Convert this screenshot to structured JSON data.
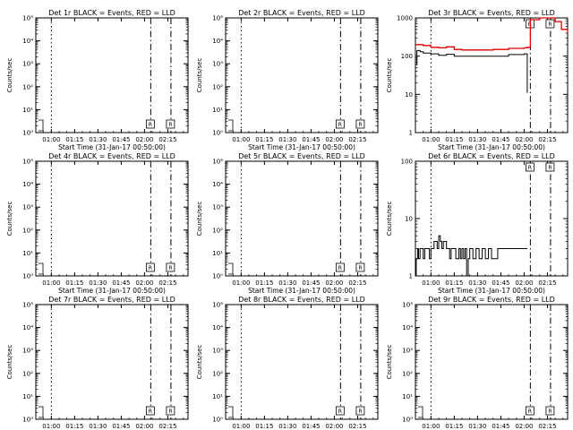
{
  "figure": {
    "colors": {
      "events": "#000000",
      "lld": "#e00000",
      "background": "#ffffff",
      "axes": "#000000"
    }
  },
  "chart_data": [
    {
      "type": "line",
      "title": "Det 1r BLACK = Events, RED = LLD",
      "xlabel": "Start Time (31-Jan-17 00:50:00)",
      "ylabel": "Counts/sec",
      "x_ticks": [
        "01:00",
        "01:15",
        "01:30",
        "01:45",
        "02:00",
        "02:15"
      ],
      "x_range": [
        "00:50",
        "02:28"
      ],
      "y_scale": "log",
      "ylim": [
        1,
        100000
      ],
      "y_ticks": [
        "10⁰",
        "10¹",
        "10²",
        "10³",
        "10⁴",
        "10⁵"
      ],
      "series": [],
      "markers": [
        "01:00",
        "02:04",
        "02:17"
      ],
      "marker_label": "R"
    },
    {
      "type": "line",
      "title": "Det 2r BLACK = Events, RED = LLD",
      "xlabel": "Start Time (31-Jan-17 00:50:00)",
      "ylabel": "Counts/sec",
      "x_ticks": [
        "01:00",
        "01:15",
        "01:30",
        "01:45",
        "02:00",
        "02:15"
      ],
      "x_range": [
        "00:50",
        "02:28"
      ],
      "y_scale": "log",
      "ylim": [
        1,
        100000
      ],
      "y_ticks": [
        "10⁰",
        "10¹",
        "10²",
        "10³",
        "10⁴",
        "10⁵"
      ],
      "series": [],
      "markers": [
        "01:00",
        "02:04",
        "02:17"
      ],
      "marker_label": "R"
    },
    {
      "type": "line",
      "title": "Det 3r BLACK = Events, RED = LLD",
      "xlabel": "Start Time (31-Jan-17 00:50:00)",
      "ylabel": "Counts/sec",
      "x_ticks": [
        "01:00",
        "01:15",
        "01:30",
        "01:45",
        "02:00",
        "02:15"
      ],
      "x_range": [
        "00:50",
        "02:28"
      ],
      "y_scale": "log",
      "ylim": [
        1,
        1000
      ],
      "y_ticks": [
        "1",
        "10",
        "100",
        "1000"
      ],
      "series": [
        {
          "color": "red",
          "x": [
            "00:50",
            "00:55",
            "01:00",
            "01:05",
            "01:10",
            "01:15",
            "01:20",
            "01:30",
            "01:40",
            "01:50",
            "02:00",
            "02:02",
            "02:04",
            "02:04",
            "02:10",
            "02:18",
            "02:20",
            "02:24",
            "02:28"
          ],
          "y": [
            200,
            190,
            170,
            165,
            175,
            150,
            145,
            145,
            150,
            160,
            165,
            170,
            170,
            900,
            1000,
            1000,
            800,
            500,
            400
          ]
        },
        {
          "color": "black",
          "x": [
            "00:50",
            "00:51",
            "00:53",
            "00:55",
            "01:00",
            "01:05",
            "01:10",
            "01:15",
            "01:20",
            "01:30",
            "01:40",
            "01:50",
            "02:00",
            "02:02",
            "02:02"
          ],
          "y": [
            60,
            140,
            130,
            120,
            115,
            105,
            112,
            100,
            100,
            100,
            100,
            110,
            115,
            115,
            11
          ]
        }
      ],
      "markers": [
        "01:00",
        "02:04",
        "02:17"
      ],
      "marker_label": "R"
    },
    {
      "type": "line",
      "title": "Det 4r BLACK = Events, RED = LLD",
      "xlabel": "Start Time (31-Jan-17 00:50:00)",
      "ylabel": "Counts/sec",
      "x_ticks": [
        "01:00",
        "01:15",
        "01:30",
        "01:45",
        "02:00",
        "02:15"
      ],
      "x_range": [
        "00:50",
        "02:28"
      ],
      "y_scale": "log",
      "ylim": [
        1,
        100000
      ],
      "y_ticks": [
        "10⁰",
        "10¹",
        "10²",
        "10³",
        "10⁴",
        "10⁵"
      ],
      "series": [],
      "markers": [
        "01:00",
        "02:04",
        "02:17"
      ],
      "marker_label": "R"
    },
    {
      "type": "line",
      "title": "Det 5r BLACK = Events, RED = LLD",
      "xlabel": "Start Time (31-Jan-17 00:50:00)",
      "ylabel": "Counts/sec",
      "x_ticks": [
        "01:00",
        "01:15",
        "01:30",
        "01:45",
        "02:00",
        "02:15"
      ],
      "x_range": [
        "00:50",
        "02:28"
      ],
      "y_scale": "log",
      "ylim": [
        1,
        100000
      ],
      "y_ticks": [
        "10⁰",
        "10¹",
        "10²",
        "10³",
        "10⁴",
        "10⁵"
      ],
      "series": [],
      "markers": [
        "01:00",
        "02:04",
        "02:17"
      ],
      "marker_label": "R"
    },
    {
      "type": "line",
      "title": "Det 6r BLACK = Events, RED = LLD",
      "xlabel": "Start Time (31-Jan-17 00:50:00)",
      "ylabel": "Counts/sec",
      "x_ticks": [
        "01:00",
        "01:15",
        "01:30",
        "01:45",
        "02:00",
        "02:15"
      ],
      "x_range": [
        "00:50",
        "02:28"
      ],
      "y_scale": "log",
      "ylim": [
        1,
        100
      ],
      "y_ticks": [
        "1",
        "10",
        "100"
      ],
      "series": [
        {
          "color": "black",
          "x": [
            "00:50",
            "00:50.5",
            "00:51",
            "00:51.5",
            "00:52",
            "00:53",
            "00:54",
            "00:55",
            "00:56",
            "00:57",
            "00:58",
            "00:59",
            "01:00",
            "01:01",
            "01:02",
            "01:03",
            "01:04",
            "01:05",
            "01:06",
            "01:07",
            "01:08",
            "01:09",
            "01:10",
            "01:11",
            "01:12",
            "01:13",
            "01:14",
            "01:15",
            "01:16",
            "01:17",
            "01:18",
            "01:19",
            "01:20",
            "01:21",
            "01:22",
            "01:23",
            "01:24",
            "01:25",
            "01:27",
            "01:29",
            "01:31",
            "01:33",
            "01:35",
            "01:37",
            "01:39",
            "01:41",
            "01:43",
            "01:45",
            "01:47",
            "01:50",
            "01:55",
            "02:00",
            "02:02"
          ],
          "y": [
            1,
            2,
            2,
            3,
            2,
            3,
            3,
            2,
            3,
            3,
            3,
            2,
            3,
            3,
            4,
            4,
            3,
            5,
            4,
            3,
            4,
            4,
            3,
            3,
            2,
            3,
            3,
            3,
            2,
            2,
            3,
            2,
            3,
            2,
            3,
            1,
            2,
            3,
            2,
            3,
            2,
            3,
            2,
            3,
            2,
            2,
            3,
            3,
            3,
            3,
            3,
            3,
            3
          ]
        }
      ],
      "markers": [
        "01:00",
        "02:04",
        "02:17"
      ],
      "marker_label": "R"
    },
    {
      "type": "line",
      "title": "Det 7r BLACK = Events, RED = LLD",
      "xlabel": "Start Time (31-Jan-17 00:50:00)",
      "ylabel": "Counts/sec",
      "x_ticks": [
        "01:00",
        "01:15",
        "01:30",
        "01:45",
        "02:00",
        "02:15"
      ],
      "x_range": [
        "00:50",
        "02:28"
      ],
      "y_scale": "log",
      "ylim": [
        1,
        100000
      ],
      "y_ticks": [
        "10⁰",
        "10¹",
        "10²",
        "10³",
        "10⁴",
        "10⁵"
      ],
      "series": [],
      "markers": [
        "01:00",
        "02:04",
        "02:17"
      ],
      "marker_label": "R"
    },
    {
      "type": "line",
      "title": "Det 8r BLACK = Events, RED = LLD",
      "xlabel": "Start Time (31-Jan-17 00:50:00)",
      "ylabel": "Counts/sec",
      "x_ticks": [
        "01:00",
        "01:15",
        "01:30",
        "01:45",
        "02:00",
        "02:15"
      ],
      "x_range": [
        "00:50",
        "02:28"
      ],
      "y_scale": "log",
      "ylim": [
        1,
        100000
      ],
      "y_ticks": [
        "10⁰",
        "10¹",
        "10²",
        "10³",
        "10⁴",
        "10⁵"
      ],
      "series": [],
      "markers": [
        "01:00",
        "02:04",
        "02:17"
      ],
      "marker_label": "R"
    },
    {
      "type": "line",
      "title": "Det 9r BLACK = Events, RED = LLD",
      "xlabel": "Start Time (31-Jan-17 00:50:00)",
      "ylabel": "Counts/sec",
      "x_ticks": [
        "01:00",
        "01:15",
        "01:30",
        "01:45",
        "02:00",
        "02:15"
      ],
      "x_range": [
        "00:50",
        "02:28"
      ],
      "y_scale": "log",
      "ylim": [
        1,
        100000
      ],
      "y_ticks": [
        "10⁰",
        "10¹",
        "10²",
        "10³",
        "10⁴",
        "10⁵"
      ],
      "series": [],
      "markers": [
        "01:00",
        "02:04",
        "02:17"
      ],
      "marker_label": "R"
    }
  ]
}
